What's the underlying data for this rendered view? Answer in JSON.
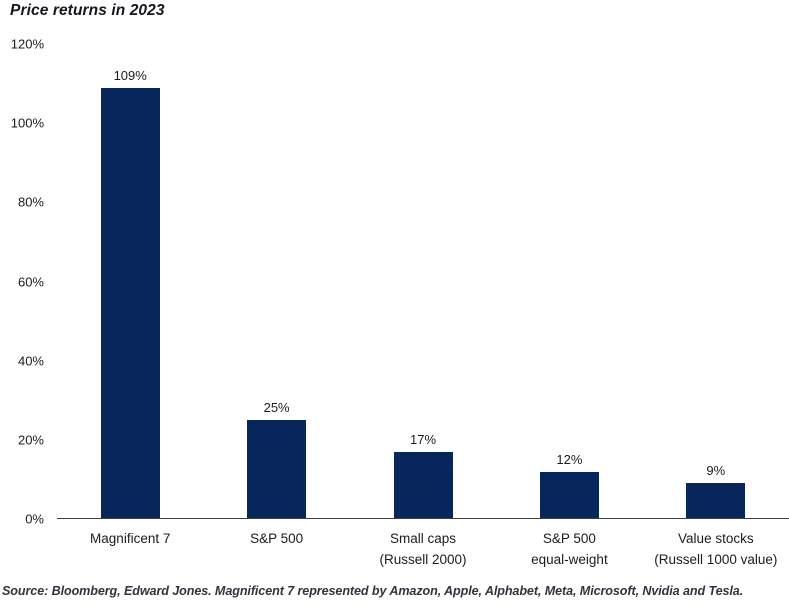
{
  "title": "Price returns in 2023",
  "source_note": "Source: Bloomberg, Edward Jones. Magnificent 7 represented by Amazon, Apple, Alphabet, Meta, Microsoft, Nvidia and Tesla.",
  "colors": {
    "bar": "#07265c",
    "title_text": "#16161d",
    "axis_text": "#1c1c1c",
    "axis_line": "#404040",
    "source_text": "#33333d",
    "background": "#ffffff"
  },
  "chart_data": {
    "type": "bar",
    "title": "Price returns in 2023",
    "categories": [
      "Magnificent 7",
      "S&P 500",
      "Small caps (Russell 2000)",
      "S&P 500 equal-weight",
      "Value stocks (Russell 1000 value)"
    ],
    "category_lines": [
      [
        "Magnificent 7"
      ],
      [
        "S&P 500"
      ],
      [
        "Small caps",
        "(Russell 2000)"
      ],
      [
        "S&P 500",
        "equal-weight"
      ],
      [
        "Value stocks",
        "(Russell 1000 value)"
      ]
    ],
    "values": [
      109,
      25,
      17,
      12,
      9
    ],
    "value_labels": [
      "109%",
      "25%",
      "17%",
      "12%",
      "9%"
    ],
    "xlabel": "",
    "ylabel": "",
    "ylim": [
      0,
      120
    ],
    "yticks": [
      0,
      20,
      40,
      60,
      80,
      100,
      120
    ],
    "ytick_labels": [
      "0%",
      "20%",
      "40%",
      "60%",
      "80%",
      "100%",
      "120%"
    ],
    "grid": false,
    "legend": "none",
    "bar_color": "#07265c"
  }
}
